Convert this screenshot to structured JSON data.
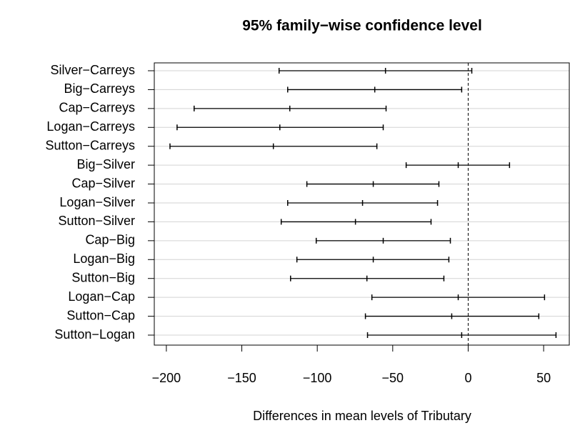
{
  "chart_data": {
    "type": "interval",
    "title": "95% family−wise confidence level",
    "x_label": "Differences in mean levels of Tributary",
    "categories": [
      "Silver−Carreys",
      "Big−Carreys",
      "Cap−Carreys",
      "Logan−Carreys",
      "Sutton−Carreys",
      "Big−Silver",
      "Cap−Silver",
      "Logan−Silver",
      "Sutton−Silver",
      "Cap−Big",
      "Logan−Big",
      "Sutton−Big",
      "Logan−Cap",
      "Sutton−Cap",
      "Sutton−Logan"
    ],
    "lower": [
      -125.3,
      -119.6,
      -181.6,
      -192.9,
      -197.6,
      -41.1,
      -106.9,
      -119.6,
      -123.9,
      -100.7,
      -113.5,
      -117.7,
      -63.8,
      -68.1,
      -66.7
    ],
    "estimate": [
      -54.8,
      -61.9,
      -118.2,
      -124.8,
      -129.1,
      -6.6,
      -62.9,
      -70.0,
      -74.7,
      -56.3,
      -62.9,
      -67.1,
      -6.6,
      -10.9,
      -4.3
    ],
    "upper": [
      2.4,
      -4.3,
      -54.4,
      -56.3,
      -60.5,
      27.4,
      -19.4,
      -20.3,
      -24.6,
      -11.8,
      -12.8,
      -16.1,
      50.6,
      46.8,
      58.2
    ],
    "color": "#000000",
    "xlim": [
      -208,
      67
    ],
    "xticks": [
      {
        "value": -200,
        "label": "−200"
      },
      {
        "value": -150,
        "label": "−150"
      },
      {
        "value": -100,
        "label": "−100"
      },
      {
        "value": -50,
        "label": "−50"
      },
      0,
      50
    ],
    "reference_line": 0,
    "grid": true
  }
}
